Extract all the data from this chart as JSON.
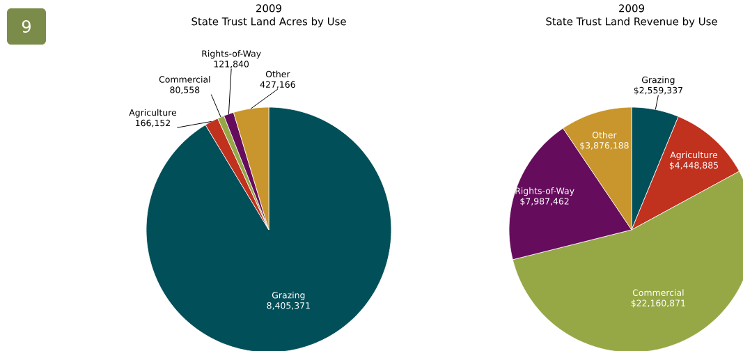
{
  "chart_data": [
    {
      "type": "pie",
      "title": "2009",
      "subtitle": "State Trust Land Acres by Use",
      "categories": [
        "Grazing",
        "Agriculture",
        "Commercial",
        "Rights-of-Way",
        "Other"
      ],
      "values": [
        8405371,
        166152,
        80558,
        121840,
        427166
      ],
      "colors": [
        "#004f59",
        "#c0311e",
        "#96a846",
        "#650d5c",
        "#c8962c"
      ],
      "value_labels": [
        "8,405,371",
        "166,152",
        "80,558",
        "121,840",
        "427,166"
      ],
      "annotations": [
        "9"
      ]
    },
    {
      "type": "pie",
      "title": "2009",
      "subtitle": "State Trust Land Revenue by Use",
      "categories": [
        "Grazing",
        "Agriculture",
        "Commercial",
        "Rights-of-Way",
        "Other"
      ],
      "values": [
        2559337,
        4448885,
        22160871,
        7987462,
        3876188
      ],
      "colors": [
        "#004f59",
        "#c0311e",
        "#96a846",
        "#650d5c",
        "#c8962c"
      ],
      "value_labels": [
        "$2,559,337",
        "$4,448,885",
        "$22,160,871",
        "$7,987,462",
        "$3,876,188"
      ]
    }
  ]
}
